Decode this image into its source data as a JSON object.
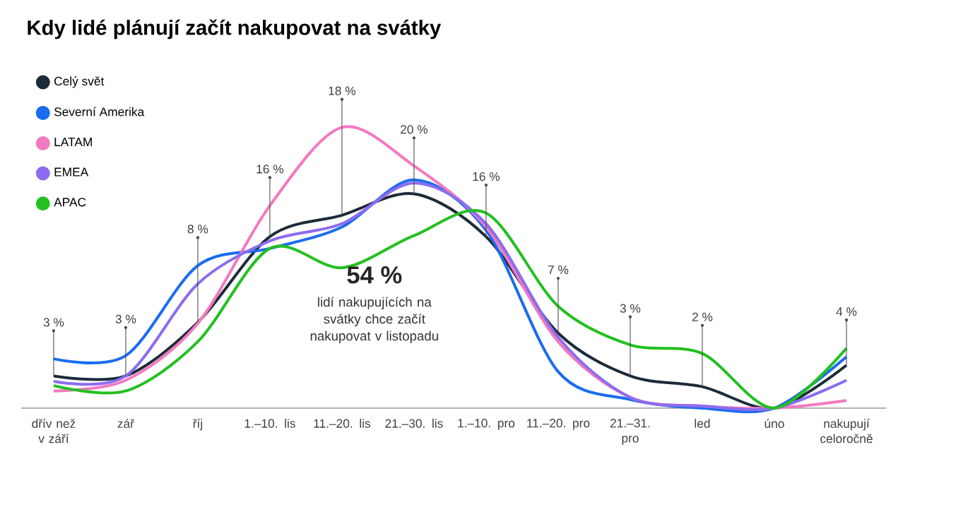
{
  "chart_data": {
    "type": "line",
    "title": "Kdy lidé plánují začít nakupovat na svátky",
    "categories": [
      "dřív než v září",
      "zář",
      "říj",
      "1.–10. lis",
      "11.–20. lis",
      "21.–30. lis",
      "1.–10. pro",
      "11.–20. pro",
      "21.–31. pro",
      "led",
      "úno",
      "nakupují celoročně"
    ],
    "series": [
      {
        "name": "Celý svět",
        "color": "#1c2b39",
        "values": [
          3,
          3,
          8,
          16,
          18,
          20,
          16,
          7,
          3,
          2,
          0,
          4
        ],
        "value_labels": [
          "3 %",
          "3 %",
          "8 %",
          "16 %",
          "18 %",
          "20 %",
          "16 %",
          "7 %",
          "3 %",
          "2 %",
          null,
          "4 %"
        ]
      },
      {
        "name": "Severní Amerika",
        "color": "#1a6cf0",
        "values": [
          4.6,
          4.9,
          13.3,
          14.9,
          16.9,
          21.3,
          16.6,
          3.4,
          0.8,
          0,
          0,
          4.8
        ]
      },
      {
        "name": "LATAM",
        "color": "#f27ac0",
        "values": [
          1.6,
          2.6,
          7.9,
          18.9,
          26.2,
          22.6,
          16.9,
          6.2,
          1,
          0.2,
          0,
          0.7
        ]
      },
      {
        "name": "EMEA",
        "color": "#8c6cf0",
        "values": [
          2.5,
          3,
          11.6,
          15.6,
          17.2,
          21,
          17.2,
          6.6,
          1,
          0.2,
          0,
          2.6
        ]
      },
      {
        "name": "APAC",
        "color": "#22c020",
        "values": [
          2.1,
          1.6,
          6.2,
          14.9,
          13.1,
          16.1,
          18.2,
          9.5,
          5.9,
          5.1,
          0,
          5.6
        ]
      }
    ],
    "annotations": [
      "54 %",
      "lidí nakupujících na svátky chce začít nakupovat v listopadu"
    ],
    "legend": "top left",
    "marker": "none",
    "line_style": "solid"
  }
}
